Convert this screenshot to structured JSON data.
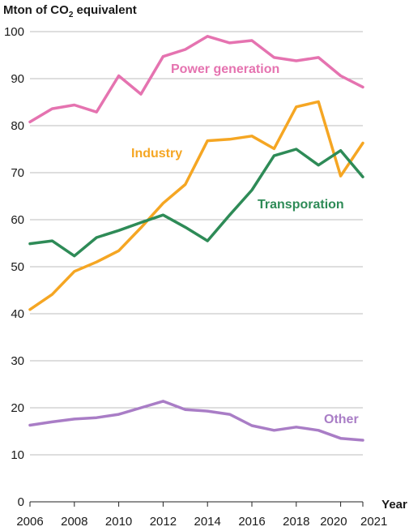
{
  "chart_data": {
    "type": "line",
    "ylabel": {
      "prefix": "Mton of CO",
      "subscript": "2",
      "suffix": " equivalent"
    },
    "xlabel": "Year",
    "xlim": [
      2006,
      2021
    ],
    "ylim": [
      0,
      100
    ],
    "grid": "horizontal",
    "x": [
      2006,
      2007,
      2008,
      2009,
      2010,
      2011,
      2012,
      2013,
      2014,
      2015,
      2016,
      2017,
      2018,
      2019,
      2020,
      2021
    ],
    "x_tick_labels": [
      "2006",
      "2008",
      "2010",
      "2012",
      "2014",
      "2016",
      "2018",
      "2020",
      "2021"
    ],
    "y_ticks": [
      0,
      10,
      20,
      30,
      40,
      50,
      60,
      70,
      80,
      90,
      100
    ],
    "series": [
      {
        "name": "Power generation",
        "color": "#e573b0",
        "values": [
          80.8,
          83.6,
          84.4,
          82.9,
          90.6,
          86.7,
          94.7,
          96.2,
          99.0,
          97.6,
          98.1,
          94.5,
          93.8,
          94.5,
          90.6,
          88.2
        ]
      },
      {
        "name": "Industry",
        "color": "#f5a623",
        "values": [
          40.9,
          44.1,
          49.0,
          51.0,
          53.4,
          58.3,
          63.5,
          67.5,
          76.8,
          77.1,
          77.8,
          75.1,
          84.0,
          85.1,
          69.3,
          76.3
        ]
      },
      {
        "name": "Transporation",
        "color": "#2e8b57",
        "values": [
          54.9,
          55.5,
          52.3,
          56.2,
          57.7,
          59.4,
          61.0,
          58.4,
          55.5,
          61.0,
          66.3,
          73.6,
          75.0,
          71.6,
          74.7,
          69.1
        ]
      },
      {
        "name": "Other",
        "color": "#a97dc6",
        "values": [
          16.3,
          17.0,
          17.6,
          17.9,
          18.6,
          20.0,
          21.4,
          19.6,
          19.3,
          18.6,
          16.2,
          15.2,
          15.9,
          15.2,
          13.5,
          13.1
        ]
      }
    ]
  }
}
